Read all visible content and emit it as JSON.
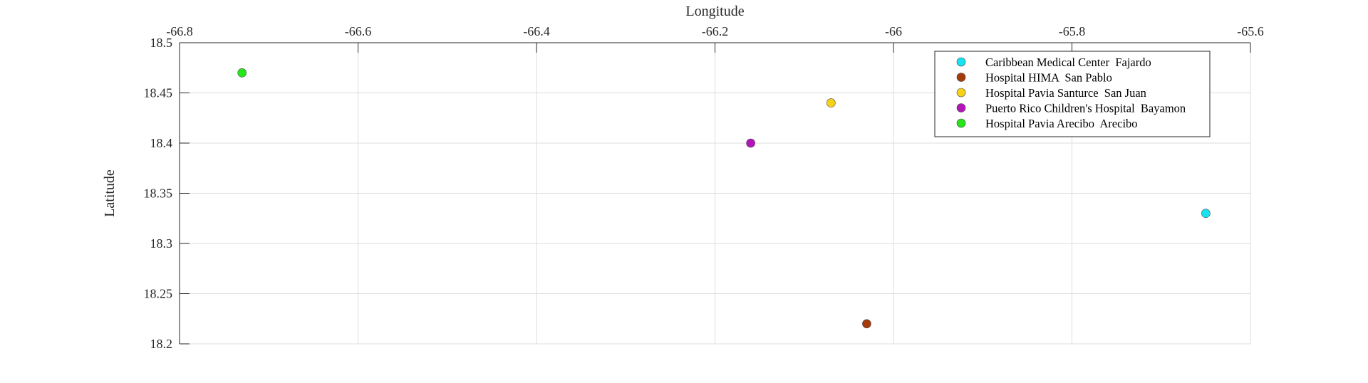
{
  "chart_data": {
    "type": "scatter",
    "title": "",
    "xlabel": "Longitude",
    "ylabel": "Latitude",
    "xlim": [
      -66.8,
      -65.6
    ],
    "ylim": [
      18.2,
      18.5
    ],
    "x_axis_location": "top",
    "grid": true,
    "legend_location": "top-right",
    "xticks": [
      -66.8,
      -66.6,
      -66.4,
      -66.2,
      -66,
      -65.8,
      -65.6
    ],
    "xtick_labels": [
      "-66.8",
      "-66.6",
      "-66.4",
      "-66.2",
      "-66",
      "-65.8",
      "-65.6"
    ],
    "yticks": [
      18.2,
      18.25,
      18.3,
      18.35,
      18.4,
      18.45,
      18.5
    ],
    "ytick_labels": [
      "18.2",
      "18.25",
      "18.3",
      "18.35",
      "18.4",
      "18.45",
      "18.5"
    ],
    "series": [
      {
        "name": "Caribbean Medical Center  Fajardo",
        "color": "#17e3f0",
        "x": [
          -65.65
        ],
        "y": [
          18.33
        ]
      },
      {
        "name": "Hospital HIMA  San Pablo",
        "color": "#a53a0a",
        "x": [
          -66.03
        ],
        "y": [
          18.22
        ]
      },
      {
        "name": "Hospital Pavia Santurce  San Juan",
        "color": "#f7d219",
        "x": [
          -66.07
        ],
        "y": [
          18.44
        ]
      },
      {
        "name": "Puerto Rico Children's Hospital  Bayamon",
        "color": "#b316b8",
        "x": [
          -66.16
        ],
        "y": [
          18.4
        ]
      },
      {
        "name": "Hospital Pavia Arecibo  Arecibo",
        "color": "#26e619",
        "x": [
          -66.73
        ],
        "y": [
          18.47
        ]
      }
    ]
  }
}
